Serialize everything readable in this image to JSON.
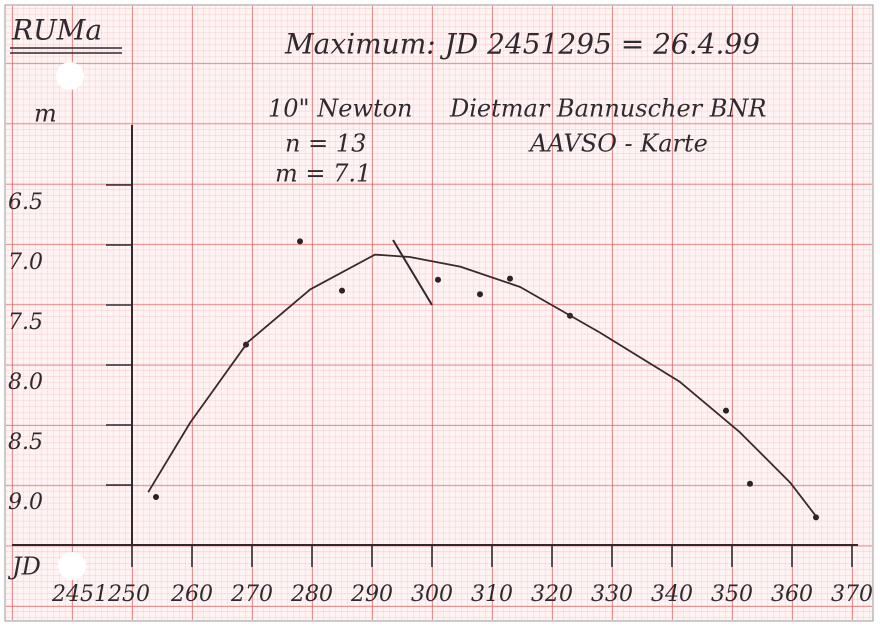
{
  "chart_data": {
    "type": "scatter",
    "title": "Maximum: JD 2451295 = 26.4.99",
    "corner_label": "RUMa",
    "annotations": [
      "10\" Newton",
      "Dietmar Bannuscher BNR",
      "AAVSO - Karte",
      "n = 13",
      "m = 7.1"
    ],
    "x_label": "JD",
    "y_label": "m",
    "xlim": [
      2451230,
      2451371
    ],
    "ylim": [
      9.5,
      6.0
    ],
    "xticks": [
      2451250,
      {
        "value": 2451260,
        "label": "260"
      },
      {
        "value": 2451270,
        "label": "270"
      },
      {
        "value": 2451280,
        "label": "280"
      },
      {
        "value": 2451290,
        "label": "290"
      },
      {
        "value": 2451300,
        "label": "300"
      },
      {
        "value": 2451310,
        "label": "310"
      },
      {
        "value": 2451320,
        "label": "320"
      },
      {
        "value": 2451330,
        "label": "330"
      },
      {
        "value": 2451340,
        "label": "340"
      },
      {
        "value": 2451350,
        "label": "350"
      },
      {
        "value": 2451360,
        "label": "360"
      },
      {
        "value": 2451370,
        "label": "370"
      }
    ],
    "yticks": [
      6.5,
      {
        "value": 7,
        "label": "7.0"
      },
      7.5,
      {
        "value": 8,
        "label": "8.0"
      },
      8.5,
      {
        "value": 9,
        "label": "9.0"
      }
    ],
    "series": [
      {
        "mode": "points",
        "color": "#2a2226",
        "x": [
          2451254,
          2451269,
          2451278,
          2451285,
          2451301,
          2451308,
          2451313,
          2451323,
          2451349,
          2451353,
          2451364
        ],
        "values": [
          9.1,
          7.83,
          6.97,
          7.38,
          7.29,
          7.41,
          7.28,
          7.59,
          8.38,
          8.99,
          9.27
        ]
      },
      {
        "mode": "line",
        "color": "#3a2a2e",
        "x": [
          2451252.7,
          2451259.7,
          2451269.3,
          2451279.7,
          2451290.5,
          2451296.3,
          2451304.7,
          2451314.7,
          2451328,
          2451341.3,
          2451351.3,
          2451359.7,
          2451364.3
        ],
        "values": [
          9.06,
          8.48,
          7.81,
          7.37,
          7.08,
          7.1,
          7.18,
          7.35,
          7.73,
          8.14,
          8.56,
          8.98,
          9.28
        ]
      }
    ]
  }
}
